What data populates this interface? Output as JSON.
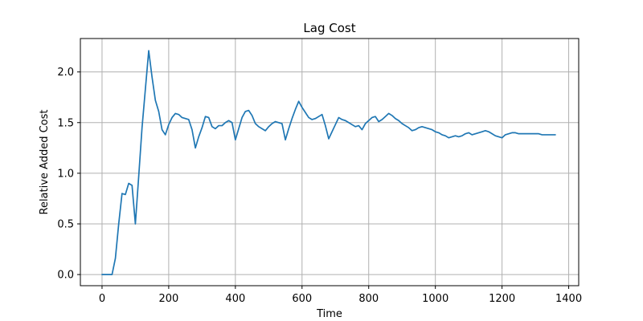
{
  "chart_data": {
    "type": "line",
    "title": "Lag Cost",
    "xlabel": "Time",
    "ylabel": "Relative Added Cost",
    "xlim": [
      -65,
      1430
    ],
    "ylim": [
      -0.11,
      2.33
    ],
    "xticks": [
      0,
      200,
      400,
      600,
      800,
      1000,
      1200,
      1400
    ],
    "yticks": [
      0.0,
      0.5,
      1.0,
      1.5,
      2.0
    ],
    "xtick_labels": [
      "0",
      "200",
      "400",
      "600",
      "800",
      "1000",
      "1200",
      "1400"
    ],
    "ytick_labels": [
      "0.0",
      "0.5",
      "1.0",
      "1.5",
      "2.0"
    ],
    "grid": true,
    "series": [
      {
        "color": "#1f77b4",
        "x": [
          0,
          10,
          20,
          30,
          40,
          50,
          60,
          70,
          80,
          90,
          100,
          110,
          120,
          130,
          140,
          150,
          160,
          170,
          180,
          190,
          200,
          210,
          220,
          230,
          240,
          250,
          260,
          270,
          280,
          290,
          300,
          310,
          320,
          330,
          340,
          350,
          360,
          370,
          380,
          390,
          400,
          410,
          420,
          430,
          440,
          450,
          460,
          470,
          480,
          490,
          500,
          510,
          520,
          530,
          540,
          550,
          560,
          570,
          580,
          590,
          600,
          610,
          620,
          630,
          640,
          650,
          660,
          670,
          680,
          690,
          700,
          710,
          720,
          730,
          740,
          750,
          760,
          770,
          780,
          790,
          800,
          810,
          820,
          830,
          840,
          850,
          860,
          870,
          880,
          890,
          900,
          910,
          920,
          930,
          940,
          950,
          960,
          970,
          980,
          990,
          1000,
          1010,
          1020,
          1030,
          1040,
          1050,
          1060,
          1070,
          1080,
          1090,
          1100,
          1110,
          1120,
          1130,
          1140,
          1150,
          1160,
          1170,
          1180,
          1190,
          1200,
          1210,
          1220,
          1230,
          1240,
          1250,
          1260,
          1270,
          1280,
          1290,
          1300,
          1310,
          1320,
          1330,
          1340,
          1350,
          1360
        ],
        "y": [
          0.0,
          0.0,
          0.0,
          0.0,
          0.16,
          0.5,
          0.8,
          0.79,
          0.9,
          0.88,
          0.5,
          0.97,
          1.45,
          1.83,
          2.21,
          1.95,
          1.72,
          1.61,
          1.43,
          1.38,
          1.48,
          1.55,
          1.59,
          1.58,
          1.55,
          1.54,
          1.53,
          1.43,
          1.25,
          1.36,
          1.45,
          1.56,
          1.55,
          1.46,
          1.44,
          1.47,
          1.47,
          1.5,
          1.52,
          1.5,
          1.33,
          1.44,
          1.55,
          1.61,
          1.62,
          1.57,
          1.49,
          1.46,
          1.44,
          1.42,
          1.46,
          1.49,
          1.51,
          1.5,
          1.49,
          1.33,
          1.44,
          1.54,
          1.63,
          1.71,
          1.65,
          1.6,
          1.55,
          1.53,
          1.54,
          1.56,
          1.58,
          1.47,
          1.34,
          1.41,
          1.48,
          1.55,
          1.53,
          1.52,
          1.5,
          1.48,
          1.46,
          1.47,
          1.43,
          1.49,
          1.52,
          1.55,
          1.56,
          1.51,
          1.53,
          1.56,
          1.59,
          1.57,
          1.54,
          1.52,
          1.49,
          1.47,
          1.45,
          1.42,
          1.43,
          1.45,
          1.46,
          1.45,
          1.44,
          1.43,
          1.41,
          1.4,
          1.38,
          1.37,
          1.35,
          1.36,
          1.37,
          1.36,
          1.37,
          1.39,
          1.4,
          1.38,
          1.39,
          1.4,
          1.41,
          1.42,
          1.41,
          1.39,
          1.37,
          1.36,
          1.35,
          1.38,
          1.39,
          1.4,
          1.4,
          1.39,
          1.39,
          1.39,
          1.39,
          1.39,
          1.39,
          1.39,
          1.38,
          1.38,
          1.38,
          1.38,
          1.38
        ]
      }
    ]
  }
}
